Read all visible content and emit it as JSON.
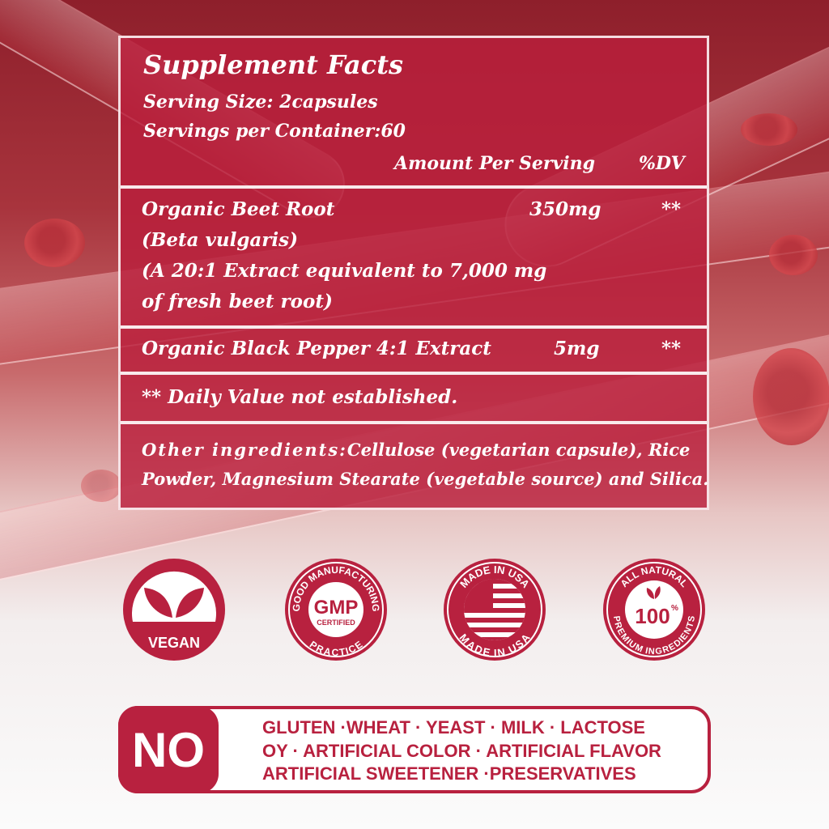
{
  "facts": {
    "title": "Supplement Facts",
    "serving_size": "Serving Size: 2capsules",
    "servings_per_container": "Servings per Container:60",
    "amount_header": "Amount Per Serving",
    "dv_header": "%DV",
    "ingredients": [
      {
        "name": "Organic Beet Root",
        "amount": "350mg",
        "dv": "**",
        "details": [
          "(Beta vulgaris)",
          "(A 20:1 Extract equivalent to 7,000 mg",
          "of fresh beet root)"
        ]
      },
      {
        "name": "Organic Black Pepper 4:1 Extract",
        "amount": "5mg",
        "dv": "**"
      }
    ],
    "footnote": "** Daily Value not established.",
    "other_label": "Other ingredients:",
    "other_line1": "Cellulose (vegetarian capsule), Rice",
    "other_line2": "Powder, Magnesium Stearate (vegetable source) and Silica."
  },
  "badges": {
    "vegan": {
      "label": "VEGAN",
      "icon": "leaf-icon"
    },
    "gmp": {
      "top": "GOOD MANUFACTURING",
      "bottom": "PRACTICE",
      "center": "GMP",
      "sub": "CERTIFIED"
    },
    "usa": {
      "top": "MADE IN USA",
      "bottom": "MADE IN USA",
      "icon": "us-flag-icon"
    },
    "natural": {
      "top": "ALL NATURAL",
      "bottom": "PREMIUM INGREDIENTS",
      "center": "100",
      "sup": "%"
    }
  },
  "no_box": {
    "label": "NO",
    "lines": [
      "GLUTEN ·WHEAT · YEAST · MILK · LACTOSE",
      "OY · ARTIFICIAL COLOR · ARTIFICIAL FLAVOR",
      "ARTIFICIAL SWEETENER ·PRESERVATIVES"
    ]
  },
  "colors": {
    "brand": "#b8213f",
    "panel": "#b91e3c"
  }
}
